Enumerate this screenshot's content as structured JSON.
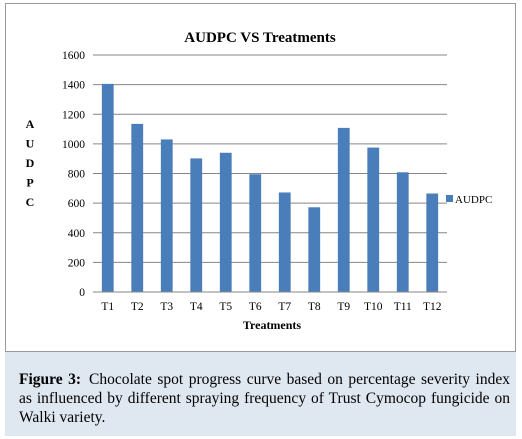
{
  "chart_data": {
    "type": "bar",
    "title": "AUDPC VS Treatments",
    "xlabel": "Treatments",
    "ylabel": "AUDPC",
    "categories": [
      "T1",
      "T2",
      "T3",
      "T4",
      "T5",
      "T6",
      "T7",
      "T8",
      "T9",
      "T10",
      "T11",
      "T12"
    ],
    "series": [
      {
        "name": "AUDPC",
        "color": "#4a7ebb",
        "values": [
          1405,
          1135,
          1030,
          902,
          940,
          795,
          672,
          572,
          1108,
          975,
          808,
          665
        ]
      }
    ],
    "ylim": [
      0,
      1600
    ],
    "yticks": [
      0,
      200,
      400,
      600,
      800,
      1000,
      1200,
      1400,
      1600
    ],
    "grid": true,
    "legend_position": "right"
  },
  "caption": {
    "label": "Figure 3:",
    "text": "Chocolate spot progress curve based on percentage severity index as influenced by different spraying frequency of Trust Cymocop fungicide on Walki variety."
  }
}
